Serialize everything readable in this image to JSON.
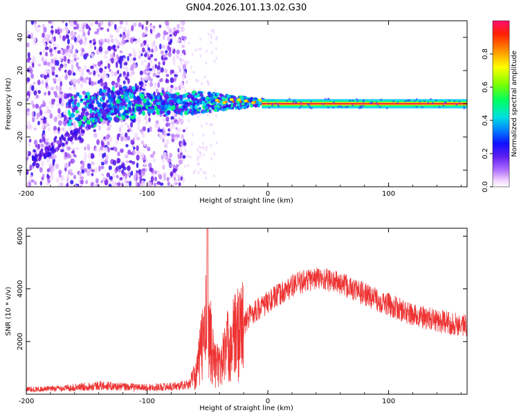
{
  "title": "GN04.2026.101.13.02.G30",
  "chart_data": [
    {
      "type": "heatmap",
      "title": "GN04.2026.101.13.02.G30",
      "xlabel": "Height of straight line (km)",
      "ylabel": "Frequency (Hz)",
      "xlim": [
        -200,
        165
      ],
      "ylim": [
        -50,
        50
      ],
      "xticks": [
        -200,
        -100,
        0,
        100
      ],
      "xtick_labels": [
        "-200",
        "-100",
        "0",
        "100"
      ],
      "yticks": [
        -40,
        -20,
        0,
        20,
        40
      ],
      "ytick_labels": [
        "-40",
        "-20",
        "0",
        "20",
        "40"
      ],
      "colorbar": {
        "label": "Normalized spectral amplitude",
        "range": [
          0,
          1
        ],
        "ticks": [
          0.0,
          0.2,
          0.4,
          0.6,
          0.8
        ],
        "tick_labels": [
          "0.0",
          "0.2",
          "0.4",
          "0.6",
          "0.8"
        ],
        "colors": [
          "#ffffff",
          "#c88ff0",
          "#8a2be2",
          "#3b1fd8",
          "#0050ff",
          "#00c8ff",
          "#00ff80",
          "#50ff00",
          "#e0ff00",
          "#ffb000",
          "#ff3000",
          "#ff1060"
        ]
      },
      "signal_trace": {
        "description_regions": [
          {
            "x_range": [
              -200,
              -68
            ],
            "kind": "noise"
          },
          {
            "x_range": [
              -110,
              -60
            ],
            "kind": "weak-signal",
            "frequency": 0
          },
          {
            "x_range": [
              -60,
              5
            ],
            "kind": "converging-signal",
            "frequency": 1
          },
          {
            "x_range": [
              0,
              165
            ],
            "kind": "strong-carrier",
            "frequency": 0
          }
        ]
      }
    },
    {
      "type": "line",
      "xlabel": "Height of straight line (km)",
      "ylabel": "SNR (10 * v/v)",
      "xlim": [
        -200,
        165
      ],
      "ylim": [
        0,
        6300
      ],
      "xticks": [
        -200,
        -100,
        0,
        100
      ],
      "xtick_labels": [
        "-200",
        "-100",
        "0",
        "100"
      ],
      "yticks": [
        2000,
        4000,
        6000
      ],
      "ytick_labels": [
        "2000",
        "4000",
        "6000"
      ],
      "series": [
        {
          "name": "SNR",
          "color": "#ee3333",
          "x": [
            -200,
            -180,
            -160,
            -140,
            -120,
            -100,
            -80,
            -65,
            -58,
            -53,
            -50,
            -48,
            -45,
            -40,
            -35,
            -30,
            -25,
            -20,
            -15,
            -10,
            -5,
            0,
            10,
            20,
            30,
            40,
            50,
            60,
            70,
            80,
            90,
            100,
            110,
            120,
            130,
            140,
            150,
            160,
            165
          ],
          "values": [
            150,
            160,
            200,
            260,
            220,
            200,
            230,
            280,
            1000,
            2300,
            2700,
            2400,
            1300,
            1000,
            1700,
            2000,
            2300,
            2600,
            3000,
            3200,
            3300,
            3500,
            3800,
            4100,
            4300,
            4400,
            4350,
            4200,
            4000,
            3800,
            3600,
            3400,
            3200,
            3000,
            2900,
            2800,
            2700,
            2650,
            2600
          ]
        }
      ]
    }
  ]
}
